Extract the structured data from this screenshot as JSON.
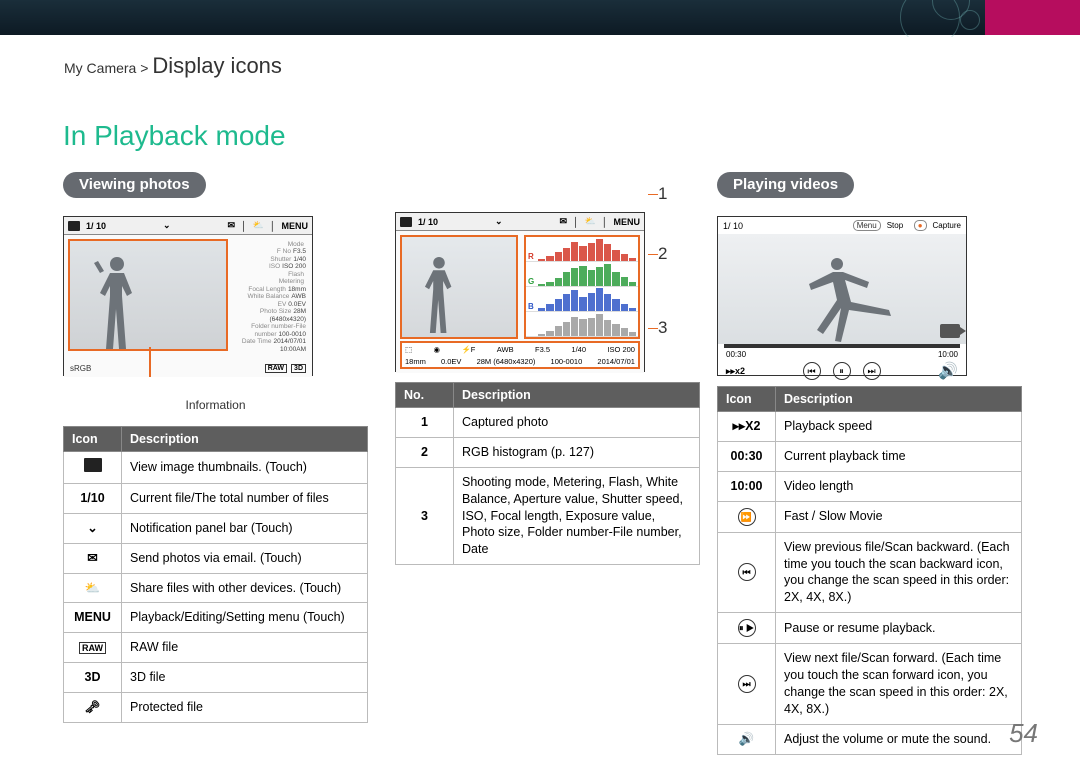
{
  "breadcrumb": {
    "prefix": "My Camera > ",
    "current": "Display icons"
  },
  "section_title": "In Playback mode",
  "page_number": "54",
  "viewing_photos": {
    "pill": "Viewing photos",
    "counter": "1/ 10",
    "menu_label": "MENU",
    "info_label": "Information",
    "info_lines": [
      [
        "Mode",
        ""
      ],
      [
        "F No",
        "F3.5"
      ],
      [
        "Shutter",
        "1/40"
      ],
      [
        "ISO",
        "ISO 200"
      ],
      [
        "Flash",
        ""
      ],
      [
        "Metering",
        ""
      ],
      [
        "Focal Length",
        "18mm"
      ],
      [
        "White Balance",
        "AWB"
      ],
      [
        "EV",
        "0.0EV"
      ],
      [
        "Photo Size",
        "28M (6480x4320)"
      ],
      [
        "Folder number-File number",
        "100-0010"
      ],
      [
        "Date Time",
        "2014/07/01 10:00AM"
      ]
    ],
    "bottom_left": "sRGB",
    "tags": [
      "RAW",
      "3D"
    ],
    "table": {
      "cols": [
        "Icon",
        "Description"
      ],
      "rows": [
        {
          "icon": "thumb-grid-icon",
          "icon_render": "box",
          "desc": "View image thumbnails. (Touch)"
        },
        {
          "icon": "counter",
          "text": "1/10",
          "desc": "Current file/The total number of files"
        },
        {
          "icon": "chevron-down-icon",
          "text": "⌄",
          "desc": "Notification panel bar (Touch)"
        },
        {
          "icon": "email-icon",
          "text": "✉",
          "desc": "Send photos via email. (Touch)"
        },
        {
          "icon": "share-icon",
          "text": "⛅",
          "desc": "Share files with other devices. (Touch)"
        },
        {
          "icon": "menu-label",
          "text": "MENU",
          "desc": "Playback/Editing/Setting menu (Touch)"
        },
        {
          "icon": "raw-badge",
          "text": "RAW",
          "box": true,
          "desc": "RAW file"
        },
        {
          "icon": "3d-badge",
          "text": "3D",
          "desc": "3D file"
        },
        {
          "icon": "key-icon",
          "text": "🗝",
          "desc": "Protected file"
        }
      ]
    }
  },
  "histogram": {
    "counter": "1/ 10",
    "channels": [
      "R",
      "G",
      "B"
    ],
    "colors": {
      "R": "#d43a2a",
      "G": "#2e9e3e",
      "B": "#2f57c7",
      "L": "#9a9a9a"
    },
    "heights_r": [
      10,
      20,
      36,
      54,
      80,
      62,
      74,
      92,
      70,
      46,
      28,
      14
    ],
    "heights_g": [
      8,
      18,
      32,
      58,
      74,
      84,
      66,
      78,
      90,
      60,
      38,
      16
    ],
    "heights_b": [
      12,
      28,
      48,
      72,
      88,
      60,
      76,
      94,
      70,
      52,
      30,
      14
    ],
    "heights_l": [
      9,
      22,
      40,
      60,
      80,
      70,
      76,
      90,
      68,
      50,
      32,
      15
    ],
    "meta_row1": [
      "⬚",
      "◉",
      "⚡F",
      "AWB",
      "F3.5",
      "1/40",
      "ISO 200"
    ],
    "meta_row2": [
      "18mm",
      "0.0EV",
      "28M (6480x4320)",
      "100-0010",
      "2014/07/01"
    ],
    "table": {
      "cols": [
        "No.",
        "Description"
      ],
      "rows": [
        {
          "no": "1",
          "desc": "Captured photo"
        },
        {
          "no": "2",
          "desc": "RGB histogram (p. 127)"
        },
        {
          "no": "3",
          "desc": "Shooting mode, Metering, Flash, White Balance, Aperture value, Shutter speed, ISO, Focal length, Exposure value, Photo size, Folder number-File number, Date"
        }
      ]
    },
    "callouts": [
      "1",
      "2",
      "3"
    ]
  },
  "playing_videos": {
    "pill": "Playing videos",
    "counter": "1/ 10",
    "stop_label": "Stop",
    "capture_label": "Capture",
    "menu_btn": "Menu",
    "time_cur": "00:30",
    "time_len": "10:00",
    "speed": "▸▸x2",
    "table": {
      "cols": [
        "Icon",
        "Description"
      ],
      "rows": [
        {
          "text": "▸▸X2",
          "desc": "Playback speed"
        },
        {
          "text": "00:30",
          "desc": "Current playback time"
        },
        {
          "text": "10:00",
          "desc": "Video length"
        },
        {
          "text": "⏩",
          "circ": true,
          "desc": "Fast / Slow Movie"
        },
        {
          "text": "⏮",
          "circ": true,
          "desc": "View previous file/Scan backward. (Each time you touch the scan backward icon, you change the scan speed in this order: 2X, 4X, 8X.)"
        },
        {
          "text": "⏸ ▶",
          "circ": true,
          "desc": "Pause or resume playback."
        },
        {
          "text": "⏭",
          "circ": true,
          "desc": "View next file/Scan forward. (Each time you touch the scan forward icon, you change the scan speed in this order: 2X, 4X, 8X.)"
        },
        {
          "text": "🔊",
          "desc": "Adjust the volume or mute the sound."
        }
      ]
    }
  }
}
